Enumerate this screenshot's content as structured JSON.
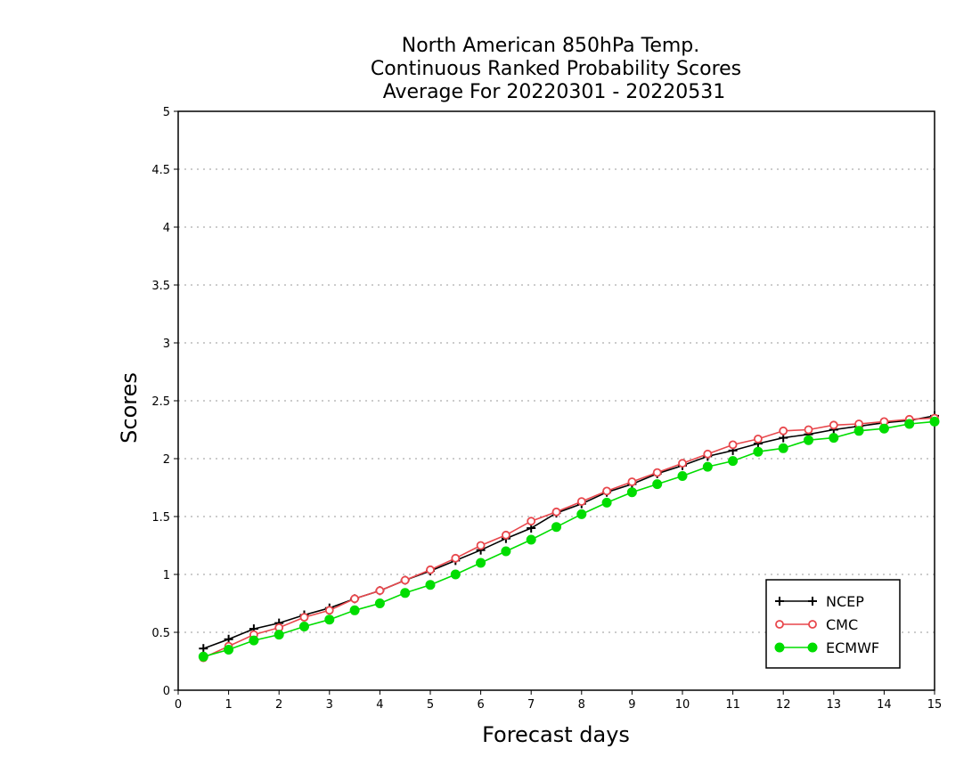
{
  "chart_data": {
    "type": "line",
    "title_lines": [
      "North American 850hPa Temp.",
      "Continuous Ranked Probability Scores",
      "Average For 20220301 - 20220531"
    ],
    "xlabel": "Forecast days",
    "ylabel": "Scores",
    "xlim": [
      0,
      15
    ],
    "ylim": [
      0,
      5
    ],
    "x_ticks": [
      "0",
      "1",
      "2",
      "3",
      "4",
      "5",
      "6",
      "7",
      "8",
      "9",
      "10",
      "11",
      "12",
      "13",
      "14",
      "15"
    ],
    "y_ticks": [
      "0",
      "0.5",
      "1",
      "1.5",
      "2",
      "2.5",
      "3",
      "3.5",
      "4",
      "4.5",
      "5"
    ],
    "grid": "horizontal dotted",
    "legend_position": "bottom-right",
    "x": [
      0.5,
      1,
      1.5,
      2,
      2.5,
      3,
      3.5,
      4,
      4.5,
      5,
      5.5,
      6,
      6.5,
      7,
      7.5,
      8,
      8.5,
      9,
      9.5,
      10,
      10.5,
      11,
      11.5,
      12,
      12.5,
      13,
      13.5,
      14,
      14.5,
      15
    ],
    "series": [
      {
        "name": "NCEP",
        "color": "#000000",
        "marker": "plus",
        "values": [
          0.36,
          0.44,
          0.53,
          0.58,
          0.65,
          0.71,
          0.79,
          0.86,
          0.95,
          1.03,
          1.12,
          1.21,
          1.31,
          1.4,
          1.53,
          1.61,
          1.71,
          1.78,
          1.87,
          1.94,
          2.02,
          2.07,
          2.13,
          2.18,
          2.21,
          2.25,
          2.28,
          2.31,
          2.33,
          2.37
        ]
      },
      {
        "name": "CMC",
        "color": "#e8474c",
        "marker": "open-circle",
        "values": [
          0.28,
          0.38,
          0.48,
          0.54,
          0.63,
          0.69,
          0.79,
          0.86,
          0.95,
          1.04,
          1.14,
          1.25,
          1.34,
          1.46,
          1.54,
          1.63,
          1.72,
          1.8,
          1.88,
          1.96,
          2.04,
          2.12,
          2.17,
          2.24,
          2.25,
          2.29,
          2.3,
          2.32,
          2.34,
          2.35
        ]
      },
      {
        "name": "ECMWF",
        "color": "#00dd00",
        "marker": "filled-circle",
        "values": [
          0.29,
          0.35,
          0.43,
          0.48,
          0.55,
          0.61,
          0.69,
          0.75,
          0.84,
          0.91,
          1.0,
          1.1,
          1.2,
          1.3,
          1.41,
          1.52,
          1.62,
          1.71,
          1.78,
          1.85,
          1.93,
          1.98,
          2.06,
          2.09,
          2.16,
          2.18,
          2.24,
          2.26,
          2.3,
          2.32
        ]
      }
    ]
  }
}
